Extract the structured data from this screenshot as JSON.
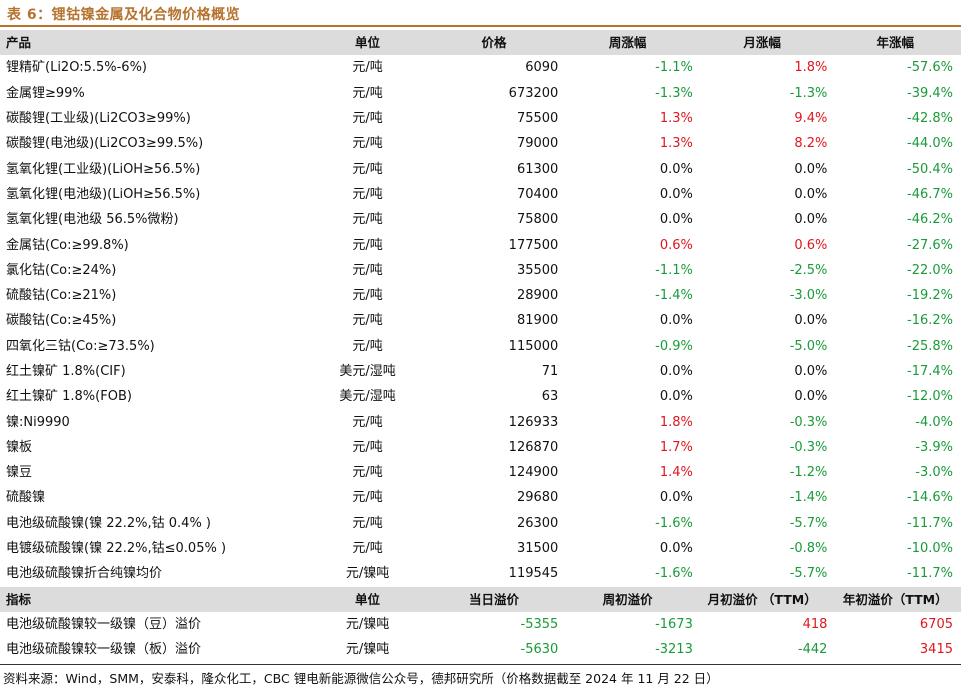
{
  "title": "表 6：锂钴镍金属及化合物价格概览",
  "header1": [
    "产品",
    "单位",
    "价格",
    "周涨幅",
    "月涨幅",
    "年涨幅"
  ],
  "rows": [
    {
      "name": "锂精矿(Li2O:5.5%-6%)",
      "unit": "元/吨",
      "price": "6090",
      "week": "-1.1%",
      "month": "1.8%",
      "year": "-57.6%",
      "wc": "neg",
      "mc": "pos",
      "yc": "neg"
    },
    {
      "name": "金属锂≥99%",
      "unit": "元/吨",
      "price": "673200",
      "week": "-1.3%",
      "month": "-1.3%",
      "year": "-39.4%",
      "wc": "neg",
      "mc": "neg",
      "yc": "neg"
    },
    {
      "name": "碳酸锂(工业级)(Li2CO3≥99%)",
      "unit": "元/吨",
      "price": "75500",
      "week": "1.3%",
      "month": "9.4%",
      "year": "-42.8%",
      "wc": "pos",
      "mc": "pos",
      "yc": "neg"
    },
    {
      "name": "碳酸锂(电池级)(Li2CO3≥99.5%)",
      "unit": "元/吨",
      "price": "79000",
      "week": "1.3%",
      "month": "8.2%",
      "year": "-44.0%",
      "wc": "pos",
      "mc": "pos",
      "yc": "neg"
    },
    {
      "name": "氢氧化锂(工业级)(LiOH≥56.5%)",
      "unit": "元/吨",
      "price": "61300",
      "week": "0.0%",
      "month": "0.0%",
      "year": "-50.4%",
      "wc": "zero",
      "mc": "zero",
      "yc": "neg"
    },
    {
      "name": "氢氧化锂(电池级)(LiOH≥56.5%)",
      "unit": "元/吨",
      "price": "70400",
      "week": "0.0%",
      "month": "0.0%",
      "year": "-46.7%",
      "wc": "zero",
      "mc": "zero",
      "yc": "neg"
    },
    {
      "name": "氢氧化锂(电池级 56.5%微粉)",
      "unit": "元/吨",
      "price": "75800",
      "week": "0.0%",
      "month": "0.0%",
      "year": "-46.2%",
      "wc": "zero",
      "mc": "zero",
      "yc": "neg"
    },
    {
      "name": "金属钴(Co:≥99.8%)",
      "unit": "元/吨",
      "price": "177500",
      "week": "0.6%",
      "month": "0.6%",
      "year": "-27.6%",
      "wc": "pos",
      "mc": "pos",
      "yc": "neg"
    },
    {
      "name": "氯化钴(Co:≥24%)",
      "unit": "元/吨",
      "price": "35500",
      "week": "-1.1%",
      "month": "-2.5%",
      "year": "-22.0%",
      "wc": "neg",
      "mc": "neg",
      "yc": "neg"
    },
    {
      "name": "硫酸钴(Co:≥21%)",
      "unit": "元/吨",
      "price": "28900",
      "week": "-1.4%",
      "month": "-3.0%",
      "year": "-19.2%",
      "wc": "neg",
      "mc": "neg",
      "yc": "neg"
    },
    {
      "name": "碳酸钴(Co:≥45%)",
      "unit": "元/吨",
      "price": "81900",
      "week": "0.0%",
      "month": "0.0%",
      "year": "-16.2%",
      "wc": "zero",
      "mc": "zero",
      "yc": "neg"
    },
    {
      "name": "四氧化三钴(Co:≥73.5%)",
      "unit": "元/吨",
      "price": "115000",
      "week": "-0.9%",
      "month": "-5.0%",
      "year": "-25.8%",
      "wc": "neg",
      "mc": "neg",
      "yc": "neg"
    },
    {
      "name": "红土镍矿 1.8%(CIF)",
      "unit": "美元/湿吨",
      "price": "71",
      "week": "0.0%",
      "month": "0.0%",
      "year": "-17.4%",
      "wc": "zero",
      "mc": "zero",
      "yc": "neg"
    },
    {
      "name": "红土镍矿 1.8%(FOB)",
      "unit": "美元/湿吨",
      "price": "63",
      "week": "0.0%",
      "month": "0.0%",
      "year": "-12.0%",
      "wc": "zero",
      "mc": "zero",
      "yc": "neg"
    },
    {
      "name": "镍:Ni9990",
      "unit": "元/吨",
      "price": "126933",
      "week": "1.8%",
      "month": "-0.3%",
      "year": "-4.0%",
      "wc": "pos",
      "mc": "neg",
      "yc": "neg"
    },
    {
      "name": "镍板",
      "unit": "元/吨",
      "price": "126870",
      "week": "1.7%",
      "month": "-0.3%",
      "year": "-3.9%",
      "wc": "pos",
      "mc": "neg",
      "yc": "neg"
    },
    {
      "name": "镍豆",
      "unit": "元/吨",
      "price": "124900",
      "week": "1.4%",
      "month": "-1.2%",
      "year": "-3.0%",
      "wc": "pos",
      "mc": "neg",
      "yc": "neg"
    },
    {
      "name": "硫酸镍",
      "unit": "元/吨",
      "price": "29680",
      "week": "0.0%",
      "month": "-1.4%",
      "year": "-14.6%",
      "wc": "zero",
      "mc": "neg",
      "yc": "neg"
    },
    {
      "name": "电池级硫酸镍(镍 22.2%,钴 0.4% )",
      "unit": "元/吨",
      "price": "26300",
      "week": "-1.6%",
      "month": "-5.7%",
      "year": "-11.7%",
      "wc": "neg",
      "mc": "neg",
      "yc": "neg"
    },
    {
      "name": "电镀级硫酸镍(镍 22.2%,钴≤0.05% )",
      "unit": "元/吨",
      "price": "31500",
      "week": "0.0%",
      "month": "-0.8%",
      "year": "-10.0%",
      "wc": "zero",
      "mc": "neg",
      "yc": "neg"
    },
    {
      "name": "电池级硫酸镍折合纯镍均价",
      "unit": "元/镍吨",
      "price": "119545",
      "week": "-1.6%",
      "month": "-5.7%",
      "year": "-11.7%",
      "wc": "neg",
      "mc": "neg",
      "yc": "neg"
    }
  ],
  "header2": [
    "指标",
    "单位",
    "当日溢价",
    "周初溢价",
    "月初溢价 （TTM）",
    "年初溢价（TTM）"
  ],
  "rows2": [
    {
      "name": "电池级硫酸镍较一级镍（豆）溢价",
      "unit": "元/镍吨",
      "price": "-5355",
      "week": "-1673",
      "month": "418",
      "year": "6705",
      "pc": "neg",
      "wc": "neg",
      "mc": "pos",
      "yc": "pos"
    },
    {
      "name": "电池级硫酸镍较一级镍（板）溢价",
      "unit": "元/镍吨",
      "price": "-5630",
      "week": "-3213",
      "month": "-442",
      "year": "3415",
      "pc": "neg",
      "wc": "neg",
      "mc": "neg",
      "yc": "pos"
    }
  ],
  "source": "资料来源：Wind，SMM，安泰科，隆众化工，CBC 锂电新能源微信公众号，德邦研究所（价格数据截至 2024 年 11 月 22 日）",
  "colors": {
    "title": "#b5732e",
    "negative": "#1a9b3a",
    "positive": "#e0161e",
    "header_bg": "#dcdcdc"
  }
}
